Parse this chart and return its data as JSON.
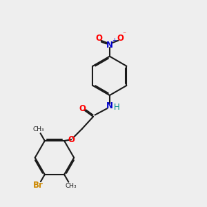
{
  "bg_color": "#eeeeee",
  "bond_color": "#1a1a1a",
  "bond_width": 1.5,
  "dbo": 0.055,
  "atom_colors": {
    "O": "#ff0000",
    "N": "#0000cc",
    "Br": "#cc8800",
    "H": "#008888"
  },
  "fs": 8.5,
  "fs_small": 7.5
}
